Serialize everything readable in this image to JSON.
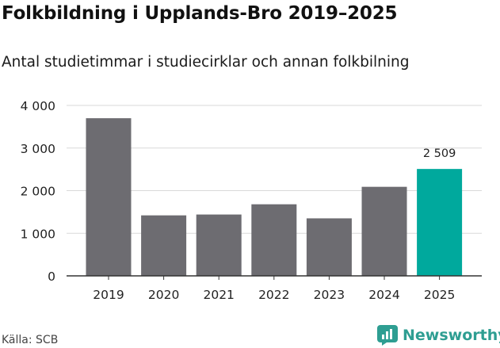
{
  "header": {
    "title": "Folkbildning i Upplands-Bro 2019–2025",
    "subtitle": "Antal studietimmar i studiecirklar och annan folkbilning"
  },
  "footer": {
    "source": "Källa: SCB",
    "brand": "Newsworthy",
    "brand_color": "#2e9e92"
  },
  "colors": {
    "bar_default": "#6d6c71",
    "bar_highlight": "#00a99d",
    "grid": "#d9d9d9",
    "axis": "#333333"
  },
  "chart_data": {
    "type": "bar",
    "title": "Folkbildning i Upplands-Bro 2019–2025",
    "subtitle": "Antal studietimmar i studiecirklar och annan folkbilning",
    "xlabel": "",
    "ylabel": "",
    "categories": [
      "2019",
      "2020",
      "2021",
      "2022",
      "2023",
      "2024",
      "2025"
    ],
    "values": [
      3700,
      1420,
      1440,
      1680,
      1350,
      2090,
      2509
    ],
    "highlight_index": 6,
    "data_labels": [
      {
        "index": 6,
        "text": "2 509"
      }
    ],
    "ylim": [
      0,
      4000
    ],
    "yticks": [
      0,
      1000,
      2000,
      3000,
      4000
    ],
    "ytick_labels": [
      "0",
      "1 000",
      "2 000",
      "3 000",
      "4 000"
    ],
    "grid": true,
    "legend": "none"
  }
}
